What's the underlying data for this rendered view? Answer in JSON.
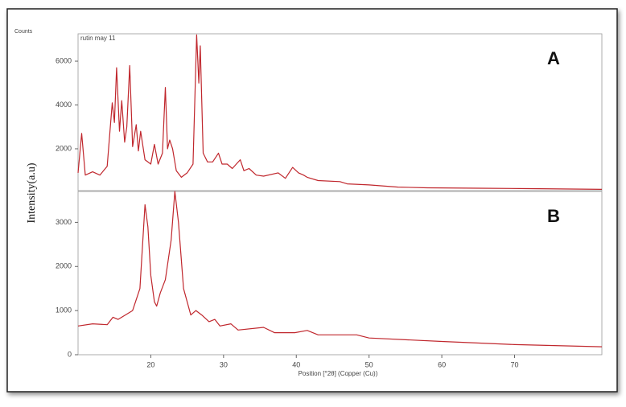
{
  "y_label": "Intensity(a.u)",
  "chart_data": [
    {
      "type": "line",
      "title": "rutin may 11",
      "y_label": "Counts",
      "panel_label": "A",
      "color": "#c0272d",
      "x": [
        10,
        10.5,
        11,
        12,
        13,
        14,
        14.7,
        15.0,
        15.3,
        15.7,
        16.0,
        16.4,
        16.7,
        17.1,
        17.5,
        18.0,
        18.3,
        18.6,
        19.2,
        20.0,
        20.5,
        21.0,
        21.6,
        22.0,
        22.3,
        22.6,
        23.0,
        23.5,
        24.2,
        25.0,
        25.8,
        26.3,
        26.6,
        26.8,
        27.2,
        27.8,
        28.5,
        29.3,
        29.8,
        30.5,
        31.2,
        32.3,
        32.8,
        33.5,
        34.5,
        35.5,
        37.5,
        38.5,
        39.5,
        40.3,
        41.0,
        41.5,
        43,
        46,
        47,
        50,
        54,
        58,
        65,
        72,
        82
      ],
      "values": [
        900,
        2700,
        800,
        950,
        800,
        1200,
        4100,
        3200,
        5700,
        2800,
        4200,
        2300,
        3000,
        5800,
        2100,
        3100,
        1900,
        2800,
        1500,
        1300,
        2200,
        1300,
        1800,
        4800,
        2000,
        2400,
        2000,
        1000,
        700,
        900,
        1300,
        7200,
        5000,
        6700,
        1800,
        1400,
        1400,
        1800,
        1300,
        1300,
        1100,
        1500,
        1000,
        1100,
        800,
        750,
        900,
        650,
        1150,
        900,
        800,
        700,
        550,
        500,
        400,
        350,
        250,
        220,
        200,
        180,
        150
      ],
      "xlim": [
        10,
        82
      ],
      "ylim": [
        90,
        7250
      ],
      "yticks": [
        2000,
        4000,
        6000
      ]
    },
    {
      "type": "line",
      "panel_label": "B",
      "x_label": "Position [°2θ] (Copper (Cu))",
      "color": "#c0272d",
      "x": [
        10,
        12,
        14,
        14.8,
        15.5,
        16.5,
        17.5,
        18.5,
        19.2,
        19.6,
        20.0,
        20.5,
        20.8,
        21.3,
        22.0,
        22.8,
        23.3,
        23.8,
        24.5,
        25.5,
        26.2,
        27.0,
        28.0,
        28.8,
        29.5,
        31.0,
        32.0,
        35.5,
        37,
        39.8,
        41.5,
        43,
        48.3,
        50,
        60,
        70,
        82
      ],
      "values": [
        650,
        700,
        680,
        850,
        800,
        900,
        1000,
        1500,
        3400,
        2900,
        1800,
        1200,
        1100,
        1400,
        1700,
        2600,
        3700,
        3000,
        1500,
        900,
        1000,
        900,
        750,
        800,
        650,
        700,
        560,
        620,
        500,
        500,
        550,
        450,
        450,
        380,
        300,
        230,
        180
      ],
      "xlim": [
        10,
        82
      ],
      "ylim": [
        0,
        3700
      ],
      "xticks": [
        20,
        30,
        40,
        50,
        60,
        70
      ],
      "yticks": [
        0,
        1000,
        2000,
        3000
      ]
    }
  ]
}
